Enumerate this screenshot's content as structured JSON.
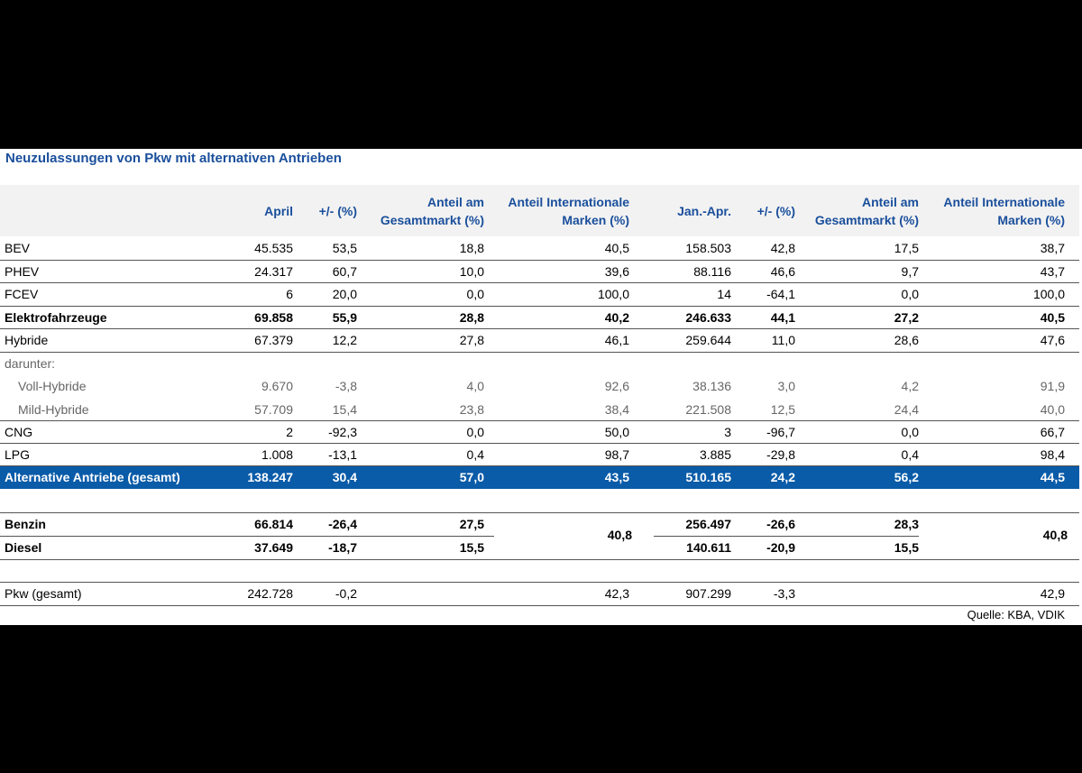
{
  "title": "Neuzulassungen von Pkw mit alternativen Antrieben",
  "chart_data": {
    "type": "table",
    "columns": [
      "",
      "April",
      "+/- (%)",
      "Anteil am\nGesamtmarkt (%)",
      "Anteil Internationale\nMarken (%)",
      "Jan.-Apr.",
      "+/- (%)",
      "Anteil am\nGesamtmarkt (%)",
      "Anteil Internationale\nMarken (%)"
    ],
    "rows": [
      [
        "BEV",
        "45.535",
        "53,5",
        "18,8",
        "40,5",
        "158.503",
        "42,8",
        "17,5",
        "38,7"
      ],
      [
        "PHEV",
        "24.317",
        "60,7",
        "10,0",
        "39,6",
        "88.116",
        "46,6",
        "9,7",
        "43,7"
      ],
      [
        "FCEV",
        "6",
        "20,0",
        "0,0",
        "100,0",
        "14",
        "-64,1",
        "0,0",
        "100,0"
      ],
      [
        "Elektrofahrzeuge",
        "69.858",
        "55,9",
        "28,8",
        "40,2",
        "246.633",
        "44,1",
        "27,2",
        "40,5"
      ],
      [
        "Hybride",
        "67.379",
        "12,2",
        "27,8",
        "46,1",
        "259.644",
        "11,0",
        "28,6",
        "47,6"
      ],
      [
        "darunter:",
        "",
        "",
        "",
        "",
        "",
        "",
        "",
        ""
      ],
      [
        "Voll-Hybride",
        "9.670",
        "-3,8",
        "4,0",
        "92,6",
        "38.136",
        "3,0",
        "4,2",
        "91,9"
      ],
      [
        "Mild-Hybride",
        "57.709",
        "15,4",
        "23,8",
        "38,4",
        "221.508",
        "12,5",
        "24,4",
        "40,0"
      ],
      [
        "CNG",
        "2",
        "-92,3",
        "0,0",
        "50,0",
        "3",
        "-96,7",
        "0,0",
        "66,7"
      ],
      [
        "LPG",
        "1.008",
        "-13,1",
        "0,4",
        "98,7",
        "3.885",
        "-29,8",
        "0,4",
        "98,4"
      ],
      [
        "Alternative Antriebe (gesamt)",
        "138.247",
        "30,4",
        "57,0",
        "43,5",
        "510.165",
        "24,2",
        "56,2",
        "44,5"
      ],
      [
        "Benzin",
        "66.814",
        "-26,4",
        "27,5",
        "",
        "256.497",
        "-26,6",
        "28,3",
        ""
      ],
      [
        "Diesel",
        "37.649",
        "-18,7",
        "15,5",
        "",
        "140.611",
        "-20,9",
        "15,5",
        ""
      ],
      [
        "Pkw (gesamt)",
        "242.728",
        "-0,2",
        "",
        "42,3",
        "907.299",
        "-3,3",
        "",
        "42,9"
      ]
    ],
    "merged": {
      "benzin_diesel_intl_april": "40,8",
      "benzin_diesel_intl_janapr": "40,8"
    }
  },
  "source": "Quelle: KBA, VDIK"
}
